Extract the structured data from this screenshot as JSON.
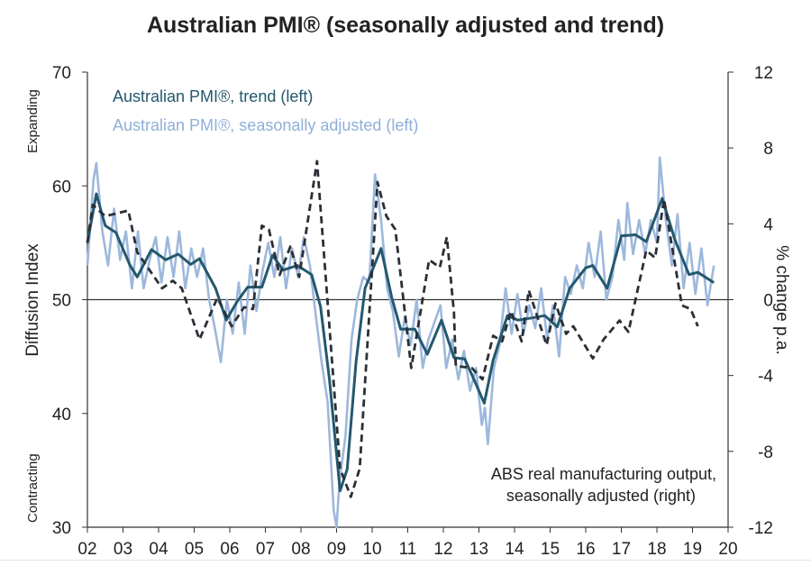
{
  "chart_data": {
    "type": "line",
    "title": "Australian PMI® (seasonally adjusted and trend)",
    "ylabel": "Diffusion Index",
    "y2label": "% change p.a.",
    "ylim": [
      30,
      70
    ],
    "y2lim": [
      -12,
      12
    ],
    "xlim": [
      2002,
      2020
    ],
    "xticks": [
      "02",
      "03",
      "04",
      "05",
      "06",
      "07",
      "08",
      "09",
      "10",
      "11",
      "12",
      "13",
      "14",
      "15",
      "16",
      "17",
      "18",
      "19",
      "20"
    ],
    "yticks": [
      30,
      40,
      50,
      60,
      70
    ],
    "y2ticks": [
      -12,
      -8,
      -4,
      0,
      4,
      8,
      12
    ],
    "top_annotation": "Expanding",
    "bottom_annotation": "Contracting",
    "reference_line": 50,
    "grid": false,
    "legend_position": "top-left",
    "series": [
      {
        "name": "Australian PMI®, seasonally adjusted (left)",
        "axis": "left",
        "color": "#9db8dc",
        "style": "solid",
        "x": [
          2002.0,
          2002.17,
          2002.25,
          2002.42,
          2002.58,
          2002.75,
          2002.92,
          2003.08,
          2003.25,
          2003.42,
          2003.58,
          2003.75,
          2003.92,
          2004.08,
          2004.25,
          2004.42,
          2004.58,
          2004.75,
          2004.92,
          2005.08,
          2005.25,
          2005.42,
          2005.58,
          2005.75,
          2005.92,
          2006.08,
          2006.25,
          2006.42,
          2006.58,
          2006.75,
          2006.92,
          2007.08,
          2007.25,
          2007.42,
          2007.58,
          2007.75,
          2007.92,
          2008.08,
          2008.25,
          2008.42,
          2008.58,
          2008.75,
          2008.92,
          2009.0,
          2009.08,
          2009.25,
          2009.42,
          2009.58,
          2009.75,
          2009.92,
          2010.08,
          2010.25,
          2010.42,
          2010.58,
          2010.75,
          2010.92,
          2011.08,
          2011.25,
          2011.42,
          2011.58,
          2011.75,
          2011.92,
          2012.08,
          2012.25,
          2012.42,
          2012.58,
          2012.75,
          2012.92,
          2013.08,
          2013.17,
          2013.25,
          2013.42,
          2013.58,
          2013.75,
          2013.92,
          2014.08,
          2014.25,
          2014.42,
          2014.58,
          2014.75,
          2014.92,
          2015.08,
          2015.25,
          2015.42,
          2015.58,
          2015.75,
          2015.92,
          2016.08,
          2016.25,
          2016.42,
          2016.58,
          2016.75,
          2016.92,
          2017.08,
          2017.17,
          2017.33,
          2017.5,
          2017.67,
          2017.83,
          2018.0,
          2018.08,
          2018.25,
          2018.42,
          2018.58,
          2018.75,
          2018.92,
          2019.08,
          2019.25,
          2019.42,
          2019.6
        ],
        "y": [
          53,
          60.5,
          62,
          56,
          53,
          58,
          53.5,
          56,
          51,
          56,
          51,
          53.5,
          55.5,
          51.5,
          55.5,
          52,
          56,
          51,
          54.5,
          52,
          54.5,
          50,
          47.5,
          44.5,
          50,
          47,
          51.5,
          47,
          53,
          49,
          52.5,
          55,
          52,
          55.5,
          51,
          54.5,
          52,
          55.5,
          53,
          48.5,
          44.5,
          41,
          31.5,
          30,
          34,
          38,
          46.5,
          50,
          52,
          51.5,
          61,
          57,
          51,
          49,
          45,
          48.5,
          46,
          50,
          44,
          46.5,
          48,
          49.5,
          44,
          46.5,
          43,
          45.5,
          42,
          44,
          39,
          40.5,
          37.3,
          44,
          46,
          51,
          47,
          50.5,
          47,
          49.5,
          47.5,
          51,
          46.5,
          49.5,
          45,
          52,
          50.5,
          53,
          51,
          55,
          52,
          56,
          50,
          52,
          57,
          53.5,
          58.5,
          54,
          57,
          54,
          57,
          55,
          62.5,
          57,
          53,
          57.5,
          51,
          55,
          50.5,
          54.5,
          49.5,
          53
        ]
      },
      {
        "name": "Australian PMI®, trend (left)",
        "axis": "left",
        "color": "#24586e",
        "style": "solid",
        "x": [
          2002.0,
          2002.25,
          2002.5,
          2002.8,
          2003.2,
          2003.4,
          2003.8,
          2004.2,
          2004.55,
          2004.9,
          2005.15,
          2005.6,
          2005.9,
          2006.2,
          2006.5,
          2006.9,
          2007.2,
          2007.5,
          2007.9,
          2008.3,
          2008.55,
          2008.8,
          2009.1,
          2009.3,
          2009.55,
          2009.8,
          2010.25,
          2010.55,
          2010.8,
          2011.2,
          2011.55,
          2011.95,
          2012.3,
          2012.6,
          2012.9,
          2013.15,
          2013.4,
          2013.8,
          2014.1,
          2014.5,
          2014.85,
          2015.2,
          2015.55,
          2016.0,
          2016.2,
          2016.6,
          2017.0,
          2017.4,
          2017.7,
          2018.15,
          2018.5,
          2018.9,
          2019.15,
          2019.6
        ],
        "y": [
          55.0,
          59.3,
          56.5,
          55.9,
          53.0,
          52.0,
          54.4,
          53.5,
          54.0,
          53.1,
          53.6,
          51.0,
          48.2,
          49.8,
          51.1,
          51.1,
          53.9,
          52.6,
          53.0,
          52.2,
          49.4,
          43.0,
          33.2,
          35.1,
          44.6,
          51.0,
          54.5,
          50.2,
          47.4,
          47.4,
          45.2,
          48.2,
          44.9,
          44.8,
          42.7,
          40.9,
          44.7,
          48.6,
          48.2,
          48.4,
          48.6,
          47.6,
          51.0,
          52.8,
          53.0,
          51.0,
          55.6,
          55.7,
          55.1,
          58.9,
          55.3,
          52.2,
          52.4,
          51.5
        ]
      },
      {
        "name": "ABS real manufacturing output, seasonally adjusted (right)",
        "axis": "right",
        "color": "#2b2f36",
        "style": "dashed",
        "x": [
          2002.0,
          2002.15,
          2002.5,
          2003.15,
          2003.4,
          2004.1,
          2004.4,
          2004.65,
          2005.15,
          2005.65,
          2006.05,
          2006.4,
          2006.65,
          2006.9,
          2007.1,
          2007.4,
          2007.7,
          2007.95,
          2008.45,
          2009.1,
          2009.4,
          2009.65,
          2010.15,
          2010.4,
          2010.65,
          2011.1,
          2011.6,
          2011.9,
          2012.1,
          2012.3,
          2012.35,
          2012.8,
          2013.1,
          2013.4,
          2013.65,
          2013.9,
          2014.2,
          2014.4,
          2014.9,
          2015.15,
          2015.45,
          2015.65,
          2016.2,
          2016.5,
          2016.95,
          2017.2,
          2017.7,
          2017.95,
          2018.2,
          2018.7,
          2018.95,
          2019.15
        ],
        "y": [
          3.0,
          5.0,
          4.4,
          4.7,
          2.5,
          0.6,
          1.0,
          0.6,
          -2.1,
          0.1,
          -1.4,
          -0.4,
          -0.5,
          3.9,
          3.7,
          1.3,
          2.8,
          1.2,
          7.3,
          -8.9,
          -10.4,
          -8.9,
          6.2,
          4.4,
          3.7,
          -3.6,
          2.1,
          1.7,
          3.3,
          -0.7,
          -3.5,
          -3.6,
          -4.2,
          -1.9,
          -2.2,
          -0.6,
          -2.2,
          0.5,
          -2.4,
          -0.2,
          -1.8,
          -1.4,
          -3.1,
          -2.1,
          -1.1,
          -1.7,
          2.6,
          2.2,
          5.3,
          -0.3,
          -0.5,
          -1.4
        ]
      }
    ],
    "legend": [
      "Australian PMI®, trend (left)",
      "Australian PMI®, seasonally adjusted (left)"
    ],
    "annotation_right": [
      "ABS real manufacturing output,",
      "seasonally adjusted (right)"
    ]
  }
}
